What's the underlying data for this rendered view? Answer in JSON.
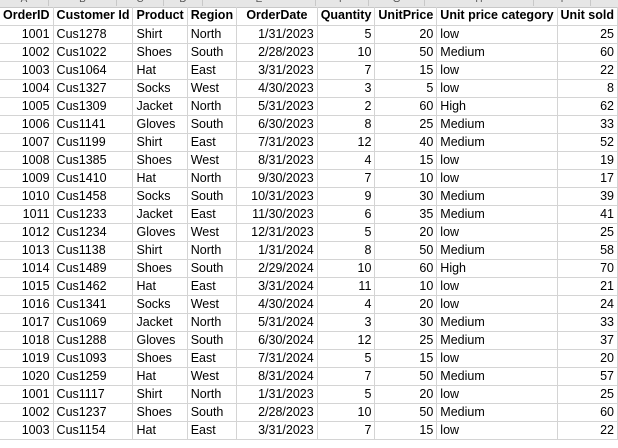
{
  "column_letters": [
    "A",
    "B",
    "C",
    "D",
    "E",
    "F",
    "G",
    "H",
    "I"
  ],
  "headers": [
    "OrderID",
    "Customer Id",
    "Product",
    "Region",
    "OrderDate",
    "Quantity",
    "UnitPrice",
    "Unit price category",
    "Unit sold"
  ],
  "rows": [
    [
      "1001",
      "Cus1278",
      "Shirt",
      "North",
      "1/31/2023",
      "5",
      "20",
      "low",
      "25"
    ],
    [
      "1002",
      "Cus1022",
      "Shoes",
      "South",
      "2/28/2023",
      "10",
      "50",
      "Medium",
      "60"
    ],
    [
      "1003",
      "Cus1064",
      "Hat",
      "East",
      "3/31/2023",
      "7",
      "15",
      "low",
      "22"
    ],
    [
      "1004",
      "Cus1327",
      "Socks",
      "West",
      "4/30/2023",
      "3",
      "5",
      "low",
      "8"
    ],
    [
      "1005",
      "Cus1309",
      "Jacket",
      "North",
      "5/31/2023",
      "2",
      "60",
      "High",
      "62"
    ],
    [
      "1006",
      "Cus1141",
      "Gloves",
      "South",
      "6/30/2023",
      "8",
      "25",
      "Medium",
      "33"
    ],
    [
      "1007",
      "Cus1199",
      "Shirt",
      "East",
      "7/31/2023",
      "12",
      "40",
      "Medium",
      "52"
    ],
    [
      "1008",
      "Cus1385",
      "Shoes",
      "West",
      "8/31/2023",
      "4",
      "15",
      "low",
      "19"
    ],
    [
      "1009",
      "Cus1410",
      "Hat",
      "North",
      "9/30/2023",
      "7",
      "10",
      "low",
      "17"
    ],
    [
      "1010",
      "Cus1458",
      "Socks",
      "South",
      "10/31/2023",
      "9",
      "30",
      "Medium",
      "39"
    ],
    [
      "1011",
      "Cus1233",
      "Jacket",
      "East",
      "11/30/2023",
      "6",
      "35",
      "Medium",
      "41"
    ],
    [
      "1012",
      "Cus1234",
      "Gloves",
      "West",
      "12/31/2023",
      "5",
      "20",
      "low",
      "25"
    ],
    [
      "1013",
      "Cus1138",
      "Shirt",
      "North",
      "1/31/2024",
      "8",
      "50",
      "Medium",
      "58"
    ],
    [
      "1014",
      "Cus1489",
      "Shoes",
      "South",
      "2/29/2024",
      "10",
      "60",
      "High",
      "70"
    ],
    [
      "1015",
      "Cus1462",
      "Hat",
      "East",
      "3/31/2024",
      "11",
      "10",
      "low",
      "21"
    ],
    [
      "1016",
      "Cus1341",
      "Socks",
      "West",
      "4/30/2024",
      "4",
      "20",
      "low",
      "24"
    ],
    [
      "1017",
      "Cus1069",
      "Jacket",
      "North",
      "5/31/2024",
      "3",
      "30",
      "Medium",
      "33"
    ],
    [
      "1018",
      "Cus1288",
      "Gloves",
      "South",
      "6/30/2024",
      "12",
      "25",
      "Medium",
      "37"
    ],
    [
      "1019",
      "Cus1093",
      "Shoes",
      "East",
      "7/31/2024",
      "5",
      "15",
      "low",
      "20"
    ],
    [
      "1020",
      "Cus1259",
      "Hat",
      "West",
      "8/31/2024",
      "7",
      "50",
      "Medium",
      "57"
    ],
    [
      "1001",
      "Cus1117",
      "Shirt",
      "North",
      "1/31/2023",
      "5",
      "20",
      "low",
      "25"
    ],
    [
      "1002",
      "Cus1237",
      "Shoes",
      "South",
      "2/28/2023",
      "10",
      "50",
      "Medium",
      "60"
    ],
    [
      "1003",
      "Cus1154",
      "Hat",
      "East",
      "3/31/2023",
      "7",
      "15",
      "low",
      "22"
    ]
  ]
}
